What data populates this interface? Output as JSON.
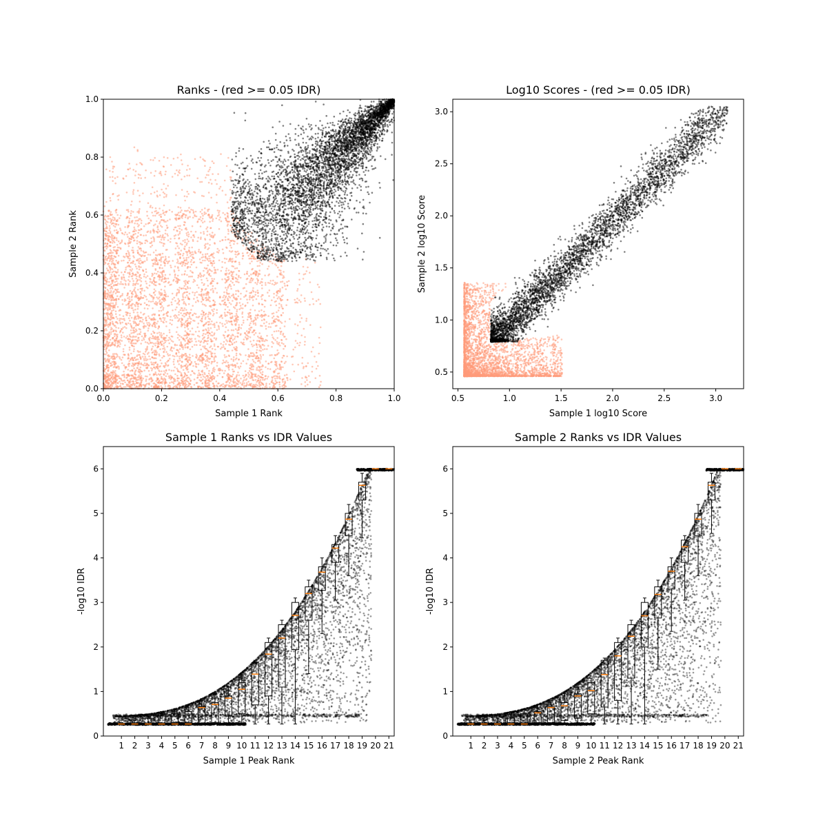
{
  "colors": {
    "black": "#000000",
    "salmon": "#ff9b7a",
    "median": "#ff7f0e"
  },
  "chart_data": [
    {
      "type": "scatter",
      "title": "Ranks - (red >= 0.05 IDR)",
      "xlabel": "Sample 1 Rank",
      "ylabel": "Sample 2 Rank",
      "xlim": [
        0,
        1
      ],
      "ylim": [
        0,
        1
      ],
      "xticks": [
        "0.0",
        "0.2",
        "0.4",
        "0.6",
        "0.8",
        "1.0"
      ],
      "yticks": [
        "0.0",
        "0.2",
        "0.4",
        "0.6",
        "0.8",
        "1.0"
      ],
      "series": [
        {
          "color": "salmon",
          "description_values": "IDR >= 0.05 points, spread over ranks 0-0.7"
        },
        {
          "color": "black",
          "description_values": "IDR < 0.05 points, ranks ~0.45-1.0 along diagonal"
        }
      ]
    },
    {
      "type": "scatter",
      "title": "Log10 Scores - (red >= 0.05 IDR)",
      "xlabel": "Sample 1 log10 Score",
      "ylabel": "Sample 2 log10 Score",
      "xlim": [
        0.45,
        3.27
      ],
      "ylim": [
        0.34,
        3.12
      ],
      "xticks": [
        "0.5",
        "1.0",
        "1.5",
        "2.0",
        "2.5",
        "3.0"
      ],
      "yticks": [
        "0.5",
        "1.0",
        "1.5",
        "2.0",
        "2.5",
        "3.0"
      ]
    },
    {
      "type": "scatter",
      "title": "Sample 1 Ranks vs IDR Values",
      "xlabel": "Sample 1 Peak Rank",
      "ylabel": "-log10 IDR",
      "ylim": [
        0,
        6.5
      ],
      "xticks": [
        "1",
        "2",
        "3",
        "4",
        "5",
        "6",
        "7",
        "8",
        "9",
        "10",
        "11",
        "12",
        "13",
        "14",
        "15",
        "16",
        "17",
        "18",
        "19",
        "20",
        "21"
      ],
      "yticks": [
        "0",
        "1",
        "2",
        "3",
        "4",
        "5",
        "6"
      ],
      "box_medians": [
        0.27,
        0.27,
        0.27,
        0.27,
        0.27,
        0.27,
        0.64,
        0.71,
        0.85,
        1.05,
        1.39,
        1.84,
        2.2,
        2.71,
        3.2,
        3.68,
        4.22,
        4.87,
        5.63,
        6.0,
        6.0
      ],
      "box_q1": [
        0.27,
        0.27,
        0.27,
        0.27,
        0.27,
        0.27,
        0.27,
        0.3,
        0.45,
        0.5,
        0.7,
        0.9,
        1.1,
        1.94,
        2.6,
        3.27,
        3.9,
        4.5,
        5.3,
        6.0,
        6.0
      ],
      "box_q3": [
        0.27,
        0.27,
        0.27,
        0.45,
        0.5,
        0.55,
        0.65,
        0.75,
        0.9,
        1.2,
        1.65,
        2.1,
        2.5,
        3.0,
        3.35,
        3.8,
        4.3,
        5.0,
        5.7,
        6.0,
        6.0
      ],
      "box_whisker_high": [
        0.3,
        0.35,
        0.4,
        0.55,
        0.6,
        0.7,
        0.8,
        0.95,
        1.1,
        1.3,
        1.7,
        2.2,
        2.6,
        3.1,
        3.5,
        4.0,
        4.5,
        5.2,
        5.9,
        6.0,
        6.0
      ],
      "box_whisker_low": [
        0.27,
        0.27,
        0.27,
        0.27,
        0.27,
        0.27,
        0.27,
        0.27,
        0.27,
        0.27,
        0.27,
        0.27,
        0.27,
        0.27,
        1.4,
        2.3,
        3.05,
        3.6,
        4.45,
        6.0,
        6.0
      ]
    },
    {
      "type": "scatter",
      "title": "Sample 2 Ranks vs IDR Values",
      "xlabel": "Sample 2 Peak Rank",
      "ylabel": "-log10 IDR",
      "ylim": [
        0,
        6.5
      ],
      "xticks": [
        "1",
        "2",
        "3",
        "4",
        "5",
        "6",
        "7",
        "8",
        "9",
        "10",
        "11",
        "12",
        "13",
        "14",
        "15",
        "16",
        "17",
        "18",
        "19",
        "20",
        "21"
      ],
      "yticks": [
        "0",
        "1",
        "2",
        "3",
        "4",
        "5",
        "6"
      ],
      "box_medians": [
        0.27,
        0.27,
        0.27,
        0.27,
        0.27,
        0.52,
        0.64,
        0.68,
        0.9,
        1.02,
        1.38,
        1.8,
        2.24,
        2.7,
        3.18,
        3.7,
        4.25,
        4.87,
        5.63,
        6.0,
        6.0
      ],
      "box_q1": [
        0.27,
        0.27,
        0.27,
        0.27,
        0.27,
        0.3,
        0.3,
        0.35,
        0.4,
        0.5,
        0.65,
        0.8,
        1.3,
        2.0,
        2.65,
        3.3,
        3.9,
        4.5,
        5.3,
        6.0,
        6.0
      ],
      "box_q3": [
        0.27,
        0.27,
        0.27,
        0.4,
        0.5,
        0.55,
        0.65,
        0.75,
        0.95,
        1.2,
        1.7,
        2.1,
        2.5,
        3.0,
        3.35,
        3.8,
        4.4,
        5.0,
        5.7,
        6.0,
        6.0
      ],
      "box_whisker_high": [
        0.3,
        0.35,
        0.4,
        0.55,
        0.6,
        0.7,
        0.8,
        0.95,
        1.1,
        1.3,
        1.75,
        2.2,
        2.6,
        3.1,
        3.5,
        4.0,
        4.5,
        5.2,
        5.9,
        6.0,
        6.0
      ],
      "box_whisker_low": [
        0.27,
        0.27,
        0.27,
        0.27,
        0.27,
        0.27,
        0.27,
        0.27,
        0.27,
        0.27,
        0.27,
        0.27,
        0.27,
        0.27,
        1.5,
        2.35,
        3.05,
        3.6,
        4.55,
        6.0,
        6.0
      ]
    }
  ]
}
